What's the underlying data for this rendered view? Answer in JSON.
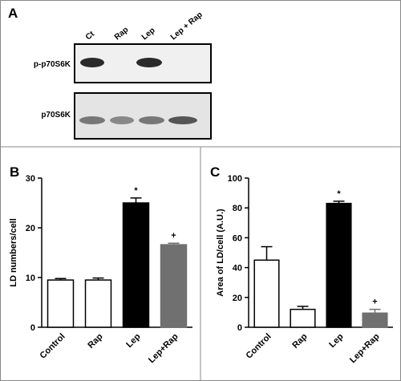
{
  "panel_a": {
    "label": "A",
    "lanes": [
      "Ct",
      "Rap",
      "Lep",
      "Lep + Rap"
    ],
    "rows": [
      "p-p70S6K",
      "p70S6K"
    ]
  },
  "chart_data": [
    {
      "type": "bar",
      "panel": "B",
      "y_label": "LD numbers/cell",
      "categories": [
        "Control",
        "Rap",
        "Lep",
        "Lep+Rap"
      ],
      "values": [
        9.5,
        9.5,
        25,
        16.6
      ],
      "errors": [
        0.3,
        0.4,
        1.0,
        0.3
      ],
      "colors": [
        "#ffffff",
        "#ffffff",
        "#000000",
        "#707070"
      ],
      "annotations": [
        null,
        null,
        "*",
        "+"
      ],
      "ylim": [
        0,
        30
      ],
      "yticks": [
        0,
        10,
        20,
        30
      ]
    },
    {
      "type": "bar",
      "panel": "C",
      "y_label": "Area of LD/cell (A.U.)",
      "categories": [
        "Control",
        "Rap",
        "Lep",
        "Lep+Rap"
      ],
      "values": [
        45,
        12,
        83,
        9.5
      ],
      "errors": [
        9,
        2,
        1.5,
        2.5
      ],
      "colors": [
        "#ffffff",
        "#ffffff",
        "#000000",
        "#707070"
      ],
      "annotations": [
        null,
        null,
        "*",
        "+"
      ],
      "ylim": [
        0,
        100
      ],
      "yticks": [
        0,
        20,
        40,
        60,
        80,
        100
      ]
    }
  ]
}
